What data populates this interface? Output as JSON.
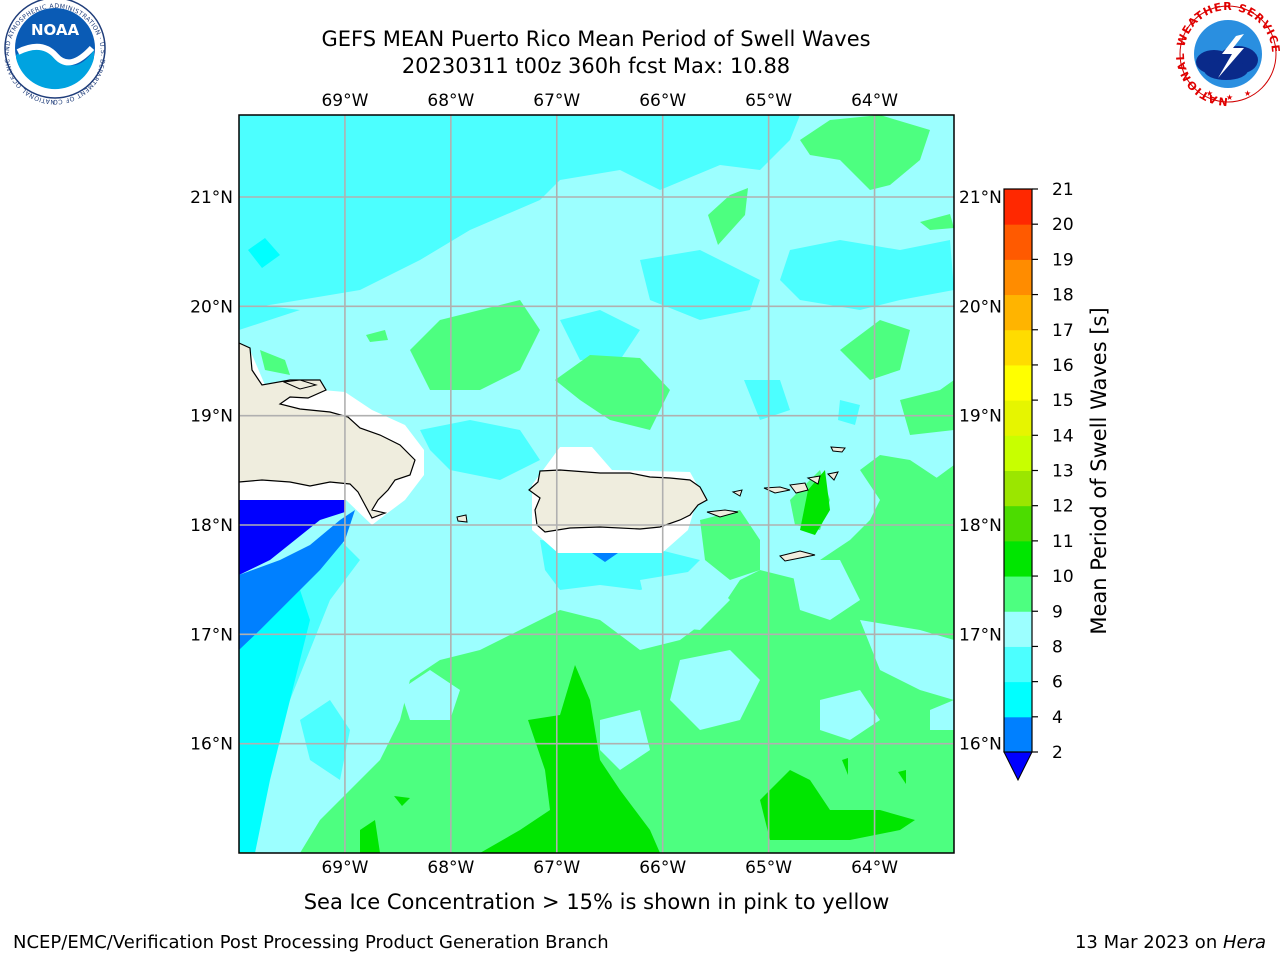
{
  "title": {
    "line1": "GEFS MEAN Puerto Rico Mean Period of Swell Waves",
    "line2": "20230311 t00z 360h fcst   Max: 10.88"
  },
  "subtitle": "Sea Ice Concentration > 15% is shown in pink to yellow",
  "footer": {
    "left": "NCEP/EMC/Verification Post Processing Product Generation Branch",
    "right_date": "13 Mar 2023 on ",
    "right_host": "Hera"
  },
  "map": {
    "lon_range": [
      -70.0,
      -63.25
    ],
    "lat_range": [
      15.0,
      21.75
    ],
    "lon_ticks": [
      {
        "value": -69,
        "label": "69°W"
      },
      {
        "value": -68,
        "label": "68°W"
      },
      {
        "value": -67,
        "label": "67°W"
      },
      {
        "value": -66,
        "label": "66°W"
      },
      {
        "value": -65,
        "label": "65°W"
      },
      {
        "value": -64,
        "label": "64°W"
      }
    ],
    "lat_ticks": [
      {
        "value": 21,
        "label": "21°N"
      },
      {
        "value": 20,
        "label": "20°N"
      },
      {
        "value": 19,
        "label": "19°N"
      },
      {
        "value": 18,
        "label": "18°N"
      },
      {
        "value": 17,
        "label": "17°N"
      },
      {
        "value": 16,
        "label": "16°N"
      }
    ],
    "gridlines": true,
    "ocean_color": "#9cffff",
    "land_color": "#efedde"
  },
  "colorbar": {
    "label": "Mean Period of Swell Waves [s]",
    "levels": [
      2,
      4,
      6,
      8,
      9,
      10,
      11,
      12,
      13,
      14,
      15,
      16,
      17,
      18,
      19,
      20,
      21
    ],
    "colors": [
      "#0080ff",
      "#00ffff",
      "#4cffff",
      "#9cffff",
      "#4dff80",
      "#00e600",
      "#4cdc00",
      "#9be600",
      "#c8ff00",
      "#e6f500",
      "#ffff00",
      "#ffdc00",
      "#ffb400",
      "#ff8c00",
      "#ff5a00",
      "#ff2800"
    ],
    "under_color": "#0000ff"
  },
  "logos": {
    "noaa": {
      "text": "NOAA",
      "ring": "NATIONAL OCEANIC AND ATMOSPHERIC ADMINISTRATION · U.S. DEPARTMENT OF COMMERCE"
    },
    "nws": {
      "ring": "NATIONAL WEATHER SERVICE"
    }
  }
}
